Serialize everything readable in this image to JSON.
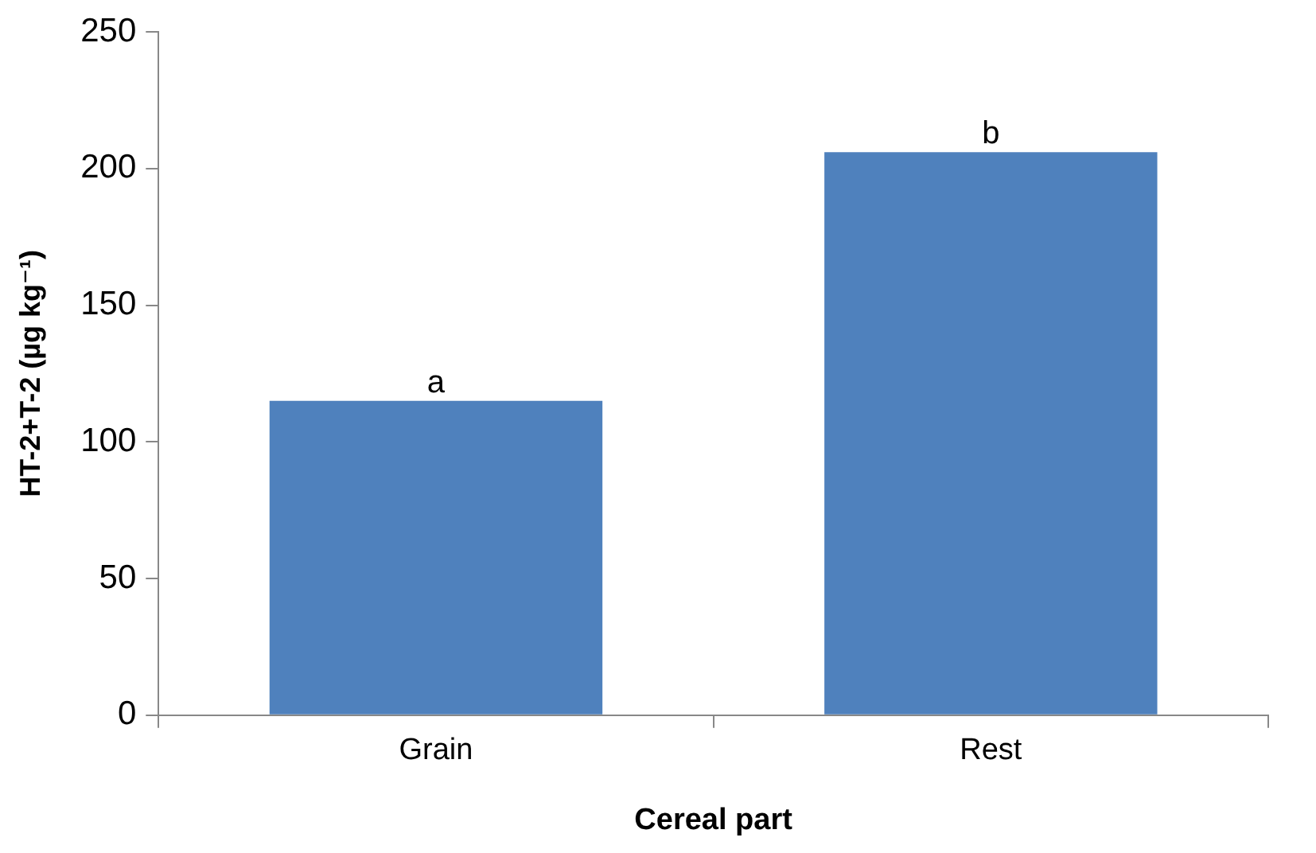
{
  "chart_data": {
    "type": "bar",
    "xlabel": "Cereal part",
    "ylabel": "HT-2+T-2 (µg kg⁻¹)",
    "categories": [
      "Grain",
      "Rest"
    ],
    "values": [
      115,
      206
    ],
    "color": "#4f81bd",
    "ylim": [
      0,
      250
    ],
    "yticks": [
      0,
      50,
      100,
      150,
      200,
      250
    ],
    "grid": false,
    "legend": false,
    "annotations": [
      {
        "text": "a",
        "x": "Grain",
        "y": 115
      },
      {
        "text": "b",
        "x": "Rest",
        "y": 206
      }
    ]
  }
}
